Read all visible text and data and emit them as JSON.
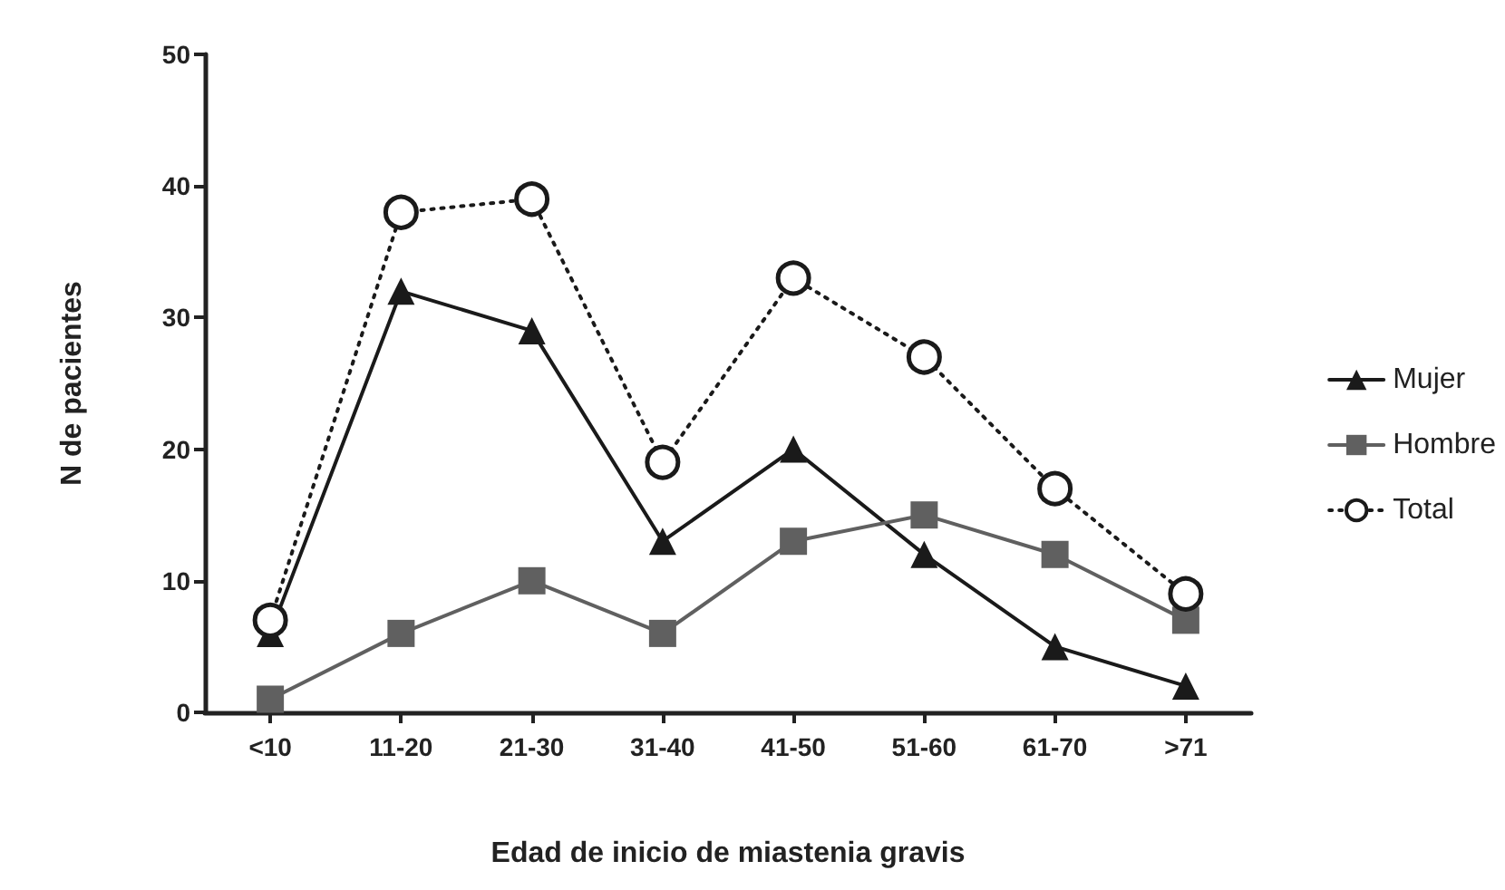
{
  "chart_data": {
    "type": "line",
    "xlabel": "Edad de inicio de miastenia gravis",
    "ylabel": "N de pacientes",
    "categories": [
      "<10",
      "11-20",
      "21-30",
      "31-40",
      "41-50",
      "51-60",
      "61-70",
      ">71"
    ],
    "series": [
      {
        "name": "Mujer",
        "color": "#1a1a1a",
        "marker": "triangle",
        "line_style": "solid",
        "values": [
          6,
          32,
          29,
          13,
          20,
          12,
          5,
          2
        ]
      },
      {
        "name": "Hombre",
        "color": "#606060",
        "marker": "square",
        "line_style": "solid",
        "values": [
          1,
          6,
          10,
          6,
          13,
          15,
          12,
          7
        ]
      },
      {
        "name": "Total",
        "color": "#1a1a1a",
        "marker": "circle",
        "line_style": "dotted",
        "values": [
          7,
          38,
          39,
          19,
          33,
          27,
          17,
          9
        ]
      }
    ],
    "ylim": [
      0,
      50
    ],
    "yticks": [
      0,
      10,
      20,
      30,
      40,
      50
    ],
    "grid": false,
    "legend": "right"
  }
}
